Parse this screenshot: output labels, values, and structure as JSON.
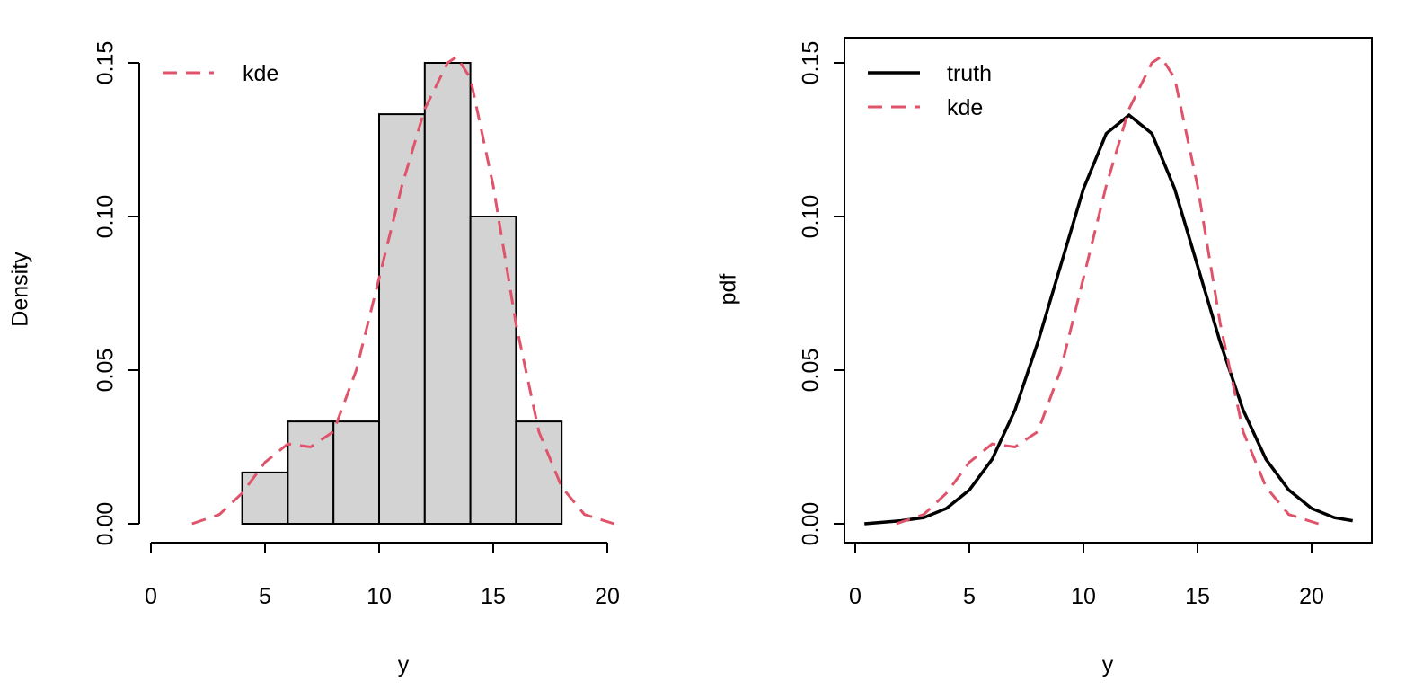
{
  "chart_data": [
    {
      "type": "bar",
      "title": "",
      "xlabel": "y",
      "ylabel": "Density",
      "xlim": [
        0,
        20
      ],
      "ylim": [
        0,
        0.15
      ],
      "xticks": [
        "0",
        "5",
        "10",
        "15",
        "20"
      ],
      "yticks": [
        "0.00",
        "0.05",
        "0.10",
        "0.15"
      ],
      "bins": [
        {
          "x0": 4,
          "x1": 6,
          "density": 0.0167
        },
        {
          "x0": 6,
          "x1": 8,
          "density": 0.0333
        },
        {
          "x0": 8,
          "x1": 10,
          "density": 0.0333
        },
        {
          "x0": 10,
          "x1": 12,
          "density": 0.1333
        },
        {
          "x0": 12,
          "x1": 14,
          "density": 0.15
        },
        {
          "x0": 14,
          "x1": 16,
          "density": 0.1
        },
        {
          "x0": 16,
          "x1": 18,
          "density": 0.0333
        }
      ],
      "series": [
        {
          "name": "kde",
          "color": "#DF536B",
          "style": "dashed",
          "x": [
            1.8,
            3.0,
            4.0,
            5.0,
            6.0,
            7.0,
            8.0,
            9.0,
            10.0,
            11.0,
            12.0,
            13.0,
            13.4,
            14.0,
            15.0,
            16.0,
            17.0,
            18.0,
            19.0,
            20.3
          ],
          "y": [
            0.0,
            0.003,
            0.01,
            0.02,
            0.026,
            0.025,
            0.03,
            0.05,
            0.08,
            0.11,
            0.135,
            0.15,
            0.152,
            0.145,
            0.11,
            0.065,
            0.03,
            0.012,
            0.003,
            0.0
          ]
        }
      ],
      "legend": {
        "position": "top-left",
        "entries": [
          "kde"
        ]
      }
    },
    {
      "type": "line",
      "title": "",
      "xlabel": "y",
      "ylabel": "pdf",
      "xlim": [
        0,
        22
      ],
      "ylim": [
        0,
        0.15
      ],
      "xticks": [
        "0",
        "5",
        "10",
        "15",
        "20"
      ],
      "yticks": [
        "0.00",
        "0.05",
        "0.10",
        "0.15"
      ],
      "series": [
        {
          "name": "truth",
          "color": "#000000",
          "style": "solid",
          "x": [
            0.4,
            2.0,
            3.0,
            4.0,
            5.0,
            6.0,
            7.0,
            8.0,
            9.0,
            10.0,
            11.0,
            12.0,
            13.0,
            14.0,
            15.0,
            16.0,
            17.0,
            18.0,
            19.0,
            20.0,
            21.0,
            21.8
          ],
          "y": [
            0.0,
            0.001,
            0.002,
            0.005,
            0.011,
            0.021,
            0.037,
            0.059,
            0.084,
            0.109,
            0.127,
            0.133,
            0.127,
            0.109,
            0.084,
            0.059,
            0.037,
            0.021,
            0.011,
            0.005,
            0.002,
            0.001
          ]
        },
        {
          "name": "kde",
          "color": "#DF536B",
          "style": "dashed",
          "x": [
            1.8,
            3.0,
            4.0,
            5.0,
            6.0,
            7.0,
            8.0,
            9.0,
            10.0,
            11.0,
            12.0,
            13.0,
            13.4,
            14.0,
            15.0,
            16.0,
            17.0,
            18.0,
            19.0,
            20.3
          ],
          "y": [
            0.0,
            0.003,
            0.01,
            0.02,
            0.026,
            0.025,
            0.03,
            0.05,
            0.08,
            0.11,
            0.135,
            0.15,
            0.152,
            0.145,
            0.11,
            0.065,
            0.03,
            0.012,
            0.003,
            0.0
          ]
        }
      ],
      "legend": {
        "position": "top-left",
        "entries": [
          "truth",
          "kde"
        ]
      }
    }
  ]
}
